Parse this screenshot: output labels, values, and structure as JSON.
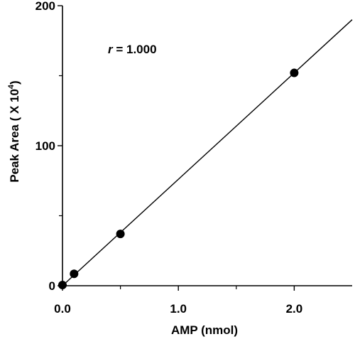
{
  "chart_data": {
    "type": "scatter",
    "xlabel": "AMP (nmol)",
    "ylabel": {
      "main": "Peak Area ( X 10",
      "superscript": "4",
      "tail": ")"
    },
    "annotation": {
      "italic": "r",
      "rest": " = 1.000"
    },
    "xlim": [
      0,
      2.5
    ],
    "ylim": [
      0,
      200
    ],
    "x_ticks": [
      {
        "value": 0,
        "label": "0.0"
      },
      {
        "value": 1,
        "label": "1.0"
      },
      {
        "value": 2,
        "label": "2.0"
      }
    ],
    "x_minor_ticks": [
      0.5,
      1.5
    ],
    "y_ticks": [
      {
        "value": 0,
        "label": "0"
      },
      {
        "value": 100,
        "label": "100"
      },
      {
        "value": 200,
        "label": "200"
      }
    ],
    "y_minor_ticks": [
      50,
      150
    ],
    "series": [
      {
        "points": [
          {
            "x": 0.0,
            "y": 0.5
          },
          {
            "x": 0.1,
            "y": 8.5
          },
          {
            "x": 0.5,
            "y": 37.0
          },
          {
            "x": 2.0,
            "y": 152.0
          }
        ],
        "marker": "filled-circle",
        "color": "#000000"
      }
    ],
    "fit_line": {
      "x": [
        0.0,
        2.5
      ],
      "y": [
        0.0,
        190.0
      ],
      "color": "#000000"
    },
    "grid": false,
    "legend": "none"
  }
}
